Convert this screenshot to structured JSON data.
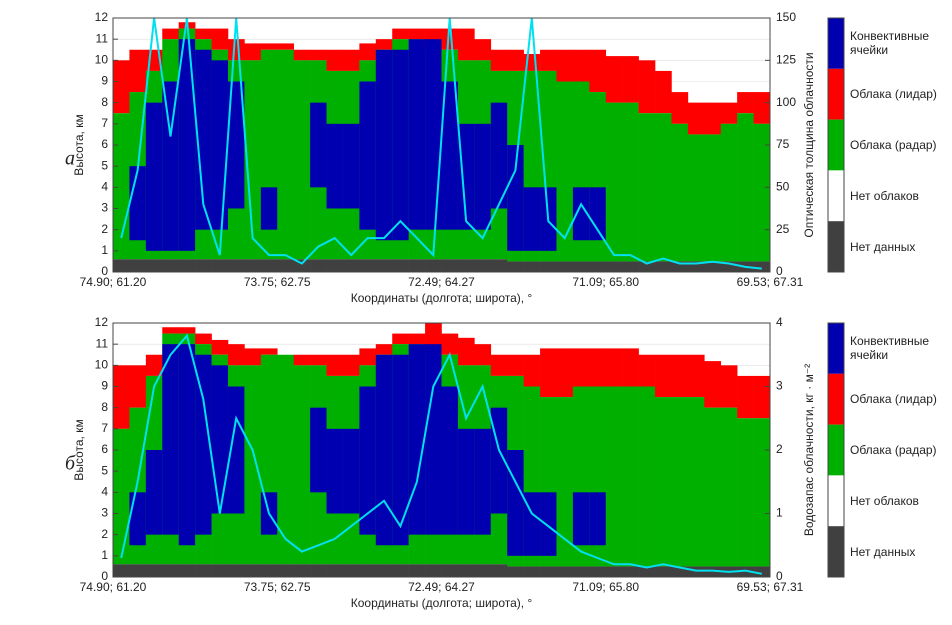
{
  "chart_data": [
    {
      "type": "curtain",
      "panel_label": "а",
      "xlabel": "Координаты (долгота; широта), °",
      "ylabel": "Высота, км",
      "y2label": "Оптическая толщина облачности",
      "xlim": [
        0,
        40
      ],
      "xticks": [
        {
          "value": 0,
          "label": "74.90; 61.20"
        },
        {
          "value": 10,
          "label": "73.75; 62.75"
        },
        {
          "value": 20,
          "label": "72.49; 64.27"
        },
        {
          "value": 30,
          "label": "71.09; 65.80"
        },
        {
          "value": 40,
          "label": "69.53; 67.31"
        }
      ],
      "ylim": [
        0,
        12
      ],
      "yticks": [
        0,
        1,
        2,
        3,
        4,
        5,
        6,
        7,
        8,
        9,
        10,
        11,
        12
      ],
      "y2lim": [
        0,
        150
      ],
      "y2ticks": [
        0,
        25,
        50,
        75,
        100,
        125,
        150
      ],
      "grid": true,
      "series": [
        {
          "name": "Конвективные ячейки",
          "color": "#0000b0",
          "values": [
            null,
            5,
            8,
            9,
            11,
            10.5,
            10,
            9,
            null,
            4,
            null,
            null,
            8,
            7,
            7,
            9,
            10.5,
            10.5,
            11,
            11,
            9,
            7,
            7,
            8,
            6,
            4,
            4,
            null,
            4,
            4,
            null,
            null,
            null,
            null,
            null,
            null,
            null,
            null,
            null,
            null
          ],
          "base": [
            null,
            1.5,
            1,
            1,
            1,
            2,
            2,
            3,
            null,
            2,
            null,
            null,
            4,
            3,
            3,
            2,
            1.5,
            1.5,
            2,
            2,
            2,
            2,
            2,
            3,
            1,
            1,
            1,
            null,
            1.5,
            1.5,
            null,
            null,
            null,
            null,
            null,
            null,
            null,
            null,
            null,
            null
          ]
        },
        {
          "name": "Облака (лидар)",
          "color": "#ff0000",
          "values": [
            10,
            10.5,
            10.5,
            11.5,
            11.8,
            11.5,
            11.5,
            11,
            10.8,
            10.8,
            10.8,
            10.5,
            10.5,
            10.5,
            10.5,
            10.8,
            11,
            11.5,
            11.5,
            11.5,
            11.5,
            11.5,
            11,
            10.5,
            10.5,
            10.3,
            10.5,
            10.5,
            10.5,
            10.5,
            10.2,
            10.2,
            10,
            9.5,
            8.5,
            8,
            8,
            8,
            8.5,
            8.5
          ]
        },
        {
          "name": "Облака (радар)",
          "color": "#00b000",
          "values": [
            7.5,
            8.5,
            9.5,
            11,
            11.5,
            11,
            10.5,
            10,
            10,
            10.5,
            10.5,
            10,
            10,
            9.5,
            9.5,
            10,
            10.5,
            11,
            11,
            10.5,
            10.5,
            10,
            10,
            9.5,
            9.5,
            9.5,
            9.5,
            9,
            9,
            8.5,
            8,
            8,
            7.5,
            7.5,
            7,
            6.5,
            6.5,
            7,
            7.5,
            7
          ]
        },
        {
          "name": "Нет облаков",
          "color": "#ffffff"
        },
        {
          "name": "Нет данных",
          "color": "#404040",
          "values": [
            0.6,
            0.6,
            0.6,
            0.6,
            0.6,
            0.6,
            0.6,
            0.6,
            0.6,
            0.6,
            0.6,
            0.6,
            0.6,
            0.6,
            0.6,
            0.6,
            0.6,
            0.6,
            0.6,
            0.6,
            0.6,
            0.6,
            0.6,
            0.6,
            0.5,
            0.5,
            0.5,
            0.5,
            0.5,
            0.5,
            0.5,
            0.5,
            0.5,
            0.5,
            0.5,
            0.5,
            0.5,
            0.5,
            0.5,
            0.5
          ]
        },
        {
          "color": "#00e0f0",
          "axis": "y2",
          "values": [
            20,
            60,
            150,
            80,
            150,
            40,
            10,
            150,
            20,
            10,
            10,
            5,
            15,
            20,
            10,
            20,
            20,
            30,
            20,
            10,
            150,
            30,
            20,
            40,
            60,
            150,
            30,
            20,
            40,
            25,
            10,
            10,
            5,
            8,
            5,
            5,
            6,
            5,
            3,
            2
          ]
        }
      ]
    },
    {
      "type": "curtain",
      "panel_label": "б",
      "xlabel": "Координаты (долгота; широта), °",
      "ylabel": "Высота, км",
      "y2label": "Водозапас облачности, кг · м⁻²",
      "xlim": [
        0,
        40
      ],
      "xticks": [
        {
          "value": 0,
          "label": "74.90; 61.20"
        },
        {
          "value": 10,
          "label": "73.75; 62.75"
        },
        {
          "value": 20,
          "label": "72.49; 64.27"
        },
        {
          "value": 30,
          "label": "71.09; 65.80"
        },
        {
          "value": 40,
          "label": "69.53; 67.31"
        }
      ],
      "ylim": [
        0,
        12
      ],
      "yticks": [
        0,
        1,
        2,
        3,
        4,
        5,
        6,
        7,
        8,
        9,
        10,
        11,
        12
      ],
      "y2lim": [
        0,
        4
      ],
      "y2ticks": [
        0,
        1,
        2,
        3,
        4
      ],
      "grid": true,
      "series": [
        {
          "name": "Конвективные ячейки",
          "color": "#0000b0",
          "values": [
            null,
            4,
            6,
            11,
            11,
            10.5,
            10,
            9,
            null,
            4,
            null,
            null,
            8,
            7,
            7,
            9,
            10.5,
            10.5,
            11,
            11,
            9,
            7,
            7,
            8,
            6,
            4,
            4,
            null,
            4,
            4,
            null,
            null,
            null,
            null,
            null,
            null,
            null,
            null,
            null,
            null
          ],
          "base": [
            null,
            1.5,
            2,
            2,
            1.5,
            2,
            3,
            3,
            null,
            2,
            null,
            null,
            4,
            3,
            3,
            2,
            1.5,
            1.5,
            2,
            2,
            2,
            2,
            2,
            3,
            1,
            1,
            1,
            null,
            1.5,
            1.5,
            null,
            null,
            null,
            null,
            null,
            null,
            null,
            null,
            null,
            null
          ]
        },
        {
          "name": "Облака (лидар)",
          "color": "#ff0000",
          "values": [
            10,
            10,
            10.5,
            11.8,
            11.8,
            11.5,
            11.2,
            11,
            10.8,
            10.8,
            10.5,
            10.5,
            10.5,
            10.5,
            10.5,
            10.8,
            11,
            11.5,
            11.5,
            12,
            11.5,
            11.3,
            11,
            10.5,
            10.5,
            10.5,
            10.8,
            10.8,
            10.8,
            10.8,
            10.8,
            10.8,
            10.5,
            10.5,
            10.5,
            10.5,
            10.2,
            10,
            9.5,
            9.5
          ]
        },
        {
          "name": "Облака (радар)",
          "color": "#00b000",
          "values": [
            7,
            8,
            9.5,
            11.5,
            11.5,
            11,
            10.5,
            10,
            10,
            10.5,
            10.5,
            10,
            10,
            9.5,
            9.5,
            10,
            10.5,
            11,
            11,
            10.5,
            10.5,
            10,
            10,
            9.5,
            9.5,
            9,
            8.5,
            8.5,
            9,
            9,
            9,
            9,
            9,
            8.5,
            8.5,
            8.5,
            8,
            8,
            7.5,
            7.5
          ]
        },
        {
          "name": "Нет облаков",
          "color": "#ffffff"
        },
        {
          "name": "Нет данных",
          "color": "#404040",
          "values": [
            0.6,
            0.6,
            0.6,
            0.6,
            0.6,
            0.6,
            0.6,
            0.6,
            0.6,
            0.6,
            0.6,
            0.6,
            0.6,
            0.6,
            0.6,
            0.6,
            0.6,
            0.6,
            0.6,
            0.6,
            0.6,
            0.6,
            0.6,
            0.6,
            0.5,
            0.5,
            0.5,
            0.5,
            0.5,
            0.5,
            0.5,
            0.5,
            0.5,
            0.5,
            0.5,
            0.5,
            0.5,
            0.5,
            0.5,
            0.5
          ]
        },
        {
          "color": "#00e0f0",
          "axis": "y2",
          "values": [
            0.3,
            1.5,
            3,
            3.5,
            3.8,
            2.8,
            1,
            2.5,
            2,
            1,
            0.6,
            0.4,
            0.5,
            0.6,
            0.8,
            1,
            1.2,
            0.8,
            1.5,
            3,
            3.5,
            2.5,
            3,
            2,
            1.5,
            1,
            0.8,
            0.6,
            0.4,
            0.3,
            0.2,
            0.2,
            0.15,
            0.2,
            0.15,
            0.1,
            0.1,
            0.08,
            0.1,
            0.05
          ]
        }
      ]
    }
  ]
}
